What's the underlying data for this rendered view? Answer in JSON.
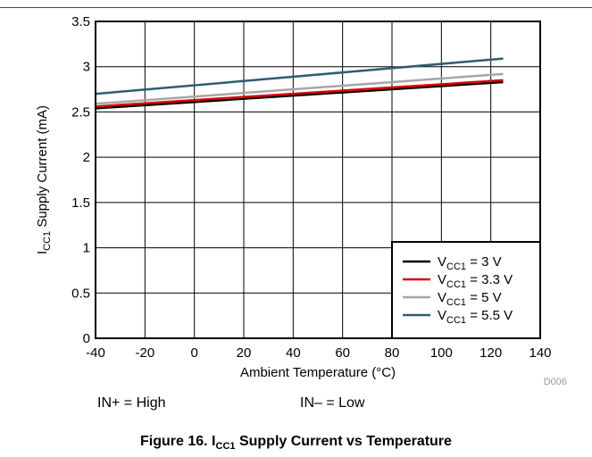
{
  "chart_data": {
    "type": "line",
    "id_tag": "D006",
    "xlabel": "Ambient Temperature (°C)",
    "ylabel": {
      "main": "I",
      "sub": "CC1",
      "rest": " Supply Current (mA)"
    },
    "xlim": [
      -40,
      140
    ],
    "ylim": [
      0,
      3.5
    ],
    "xticks": [
      -40,
      -20,
      0,
      20,
      40,
      60,
      80,
      100,
      120,
      140
    ],
    "yticks": [
      0,
      0.5,
      1,
      1.5,
      2,
      2.5,
      3,
      3.5
    ],
    "grid": true,
    "legend_position": "bottom-right",
    "series": [
      {
        "name": {
          "main": "V",
          "sub": "CC1",
          "rest": " = 3 V"
        },
        "color": "#000000",
        "x": [
          -40,
          125
        ],
        "y": [
          2.54,
          2.83
        ]
      },
      {
        "name": {
          "main": "V",
          "sub": "CC1",
          "rest": " = 3.3 V"
        },
        "color": "#e00000",
        "x": [
          -40,
          125
        ],
        "y": [
          2.56,
          2.85
        ]
      },
      {
        "name": {
          "main": "V",
          "sub": "CC1",
          "rest": " = 5 V"
        },
        "color": "#a6a6a6",
        "x": [
          -40,
          125
        ],
        "y": [
          2.59,
          2.92
        ]
      },
      {
        "name": {
          "main": "V",
          "sub": "CC1",
          "rest": " = 5.5 V"
        },
        "color": "#2e5d73",
        "x": [
          -40,
          125
        ],
        "y": [
          2.7,
          3.09
        ]
      }
    ]
  },
  "conditions": {
    "left": "IN+ = High",
    "right": "IN– = Low"
  },
  "caption": {
    "prefix": "Figure 16. I",
    "sub": "CC1",
    "suffix": " Supply Current vs Temperature"
  }
}
